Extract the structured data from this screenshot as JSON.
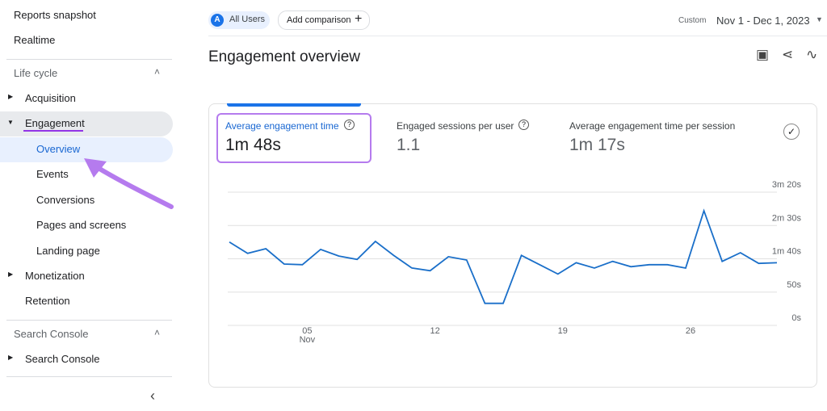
{
  "sidebar": {
    "items": [
      {
        "label": "Reports snapshot",
        "kind": "top"
      },
      {
        "label": "Realtime",
        "kind": "top"
      },
      {
        "label": "Life cycle",
        "kind": "section"
      },
      {
        "label": "Acquisition",
        "kind": "group"
      },
      {
        "label": "Engagement",
        "kind": "group-open"
      },
      {
        "label": "Overview",
        "kind": "active"
      },
      {
        "label": "Events",
        "kind": "child"
      },
      {
        "label": "Conversions",
        "kind": "child"
      },
      {
        "label": "Pages and screens",
        "kind": "child"
      },
      {
        "label": "Landing page",
        "kind": "child"
      },
      {
        "label": "Monetization",
        "kind": "group"
      },
      {
        "label": "Retention",
        "kind": "plain"
      },
      {
        "label": "Search Console",
        "kind": "section"
      },
      {
        "label": "Search Console",
        "kind": "group"
      }
    ]
  },
  "header": {
    "avatar": "A",
    "segment": "All Users",
    "add_comparison": "Add comparison",
    "range_type": "Custom",
    "date_range": "Nov 1 - Dec 1, 2023"
  },
  "page_title": "Engagement overview",
  "metrics": [
    {
      "label": "Average engagement time",
      "value": "1m 48s"
    },
    {
      "label": "Engaged sessions per user",
      "value": "1.1"
    },
    {
      "label": "Average engagement time per session",
      "value": "1m 17s"
    }
  ],
  "chart_data": {
    "type": "line",
    "categories": [
      null,
      null,
      null,
      null,
      "05",
      null,
      null,
      null,
      null,
      null,
      null,
      "12",
      null,
      null,
      null,
      null,
      null,
      null,
      "19",
      null,
      null,
      null,
      null,
      null,
      null,
      "26",
      null,
      null,
      null,
      null,
      null
    ],
    "x_month_label": "Nov",
    "values": [
      113,
      96,
      103,
      80,
      79,
      102,
      92,
      87,
      114,
      93,
      74,
      70,
      91,
      86,
      21,
      21,
      93,
      79,
      65,
      82,
      74,
      84,
      76,
      79,
      79,
      74,
      160,
      84,
      97,
      81,
      82
    ],
    "color": "#1a6fc9",
    "ylim": [
      0,
      200
    ],
    "yticks": [
      {
        "value": 0,
        "label": "0s"
      },
      {
        "value": 50,
        "label": "50s"
      },
      {
        "value": 100,
        "label": "1m 40s"
      },
      {
        "value": 150,
        "label": "2m 30s"
      },
      {
        "value": 200,
        "label": "3m 20s"
      }
    ],
    "grid": true
  }
}
